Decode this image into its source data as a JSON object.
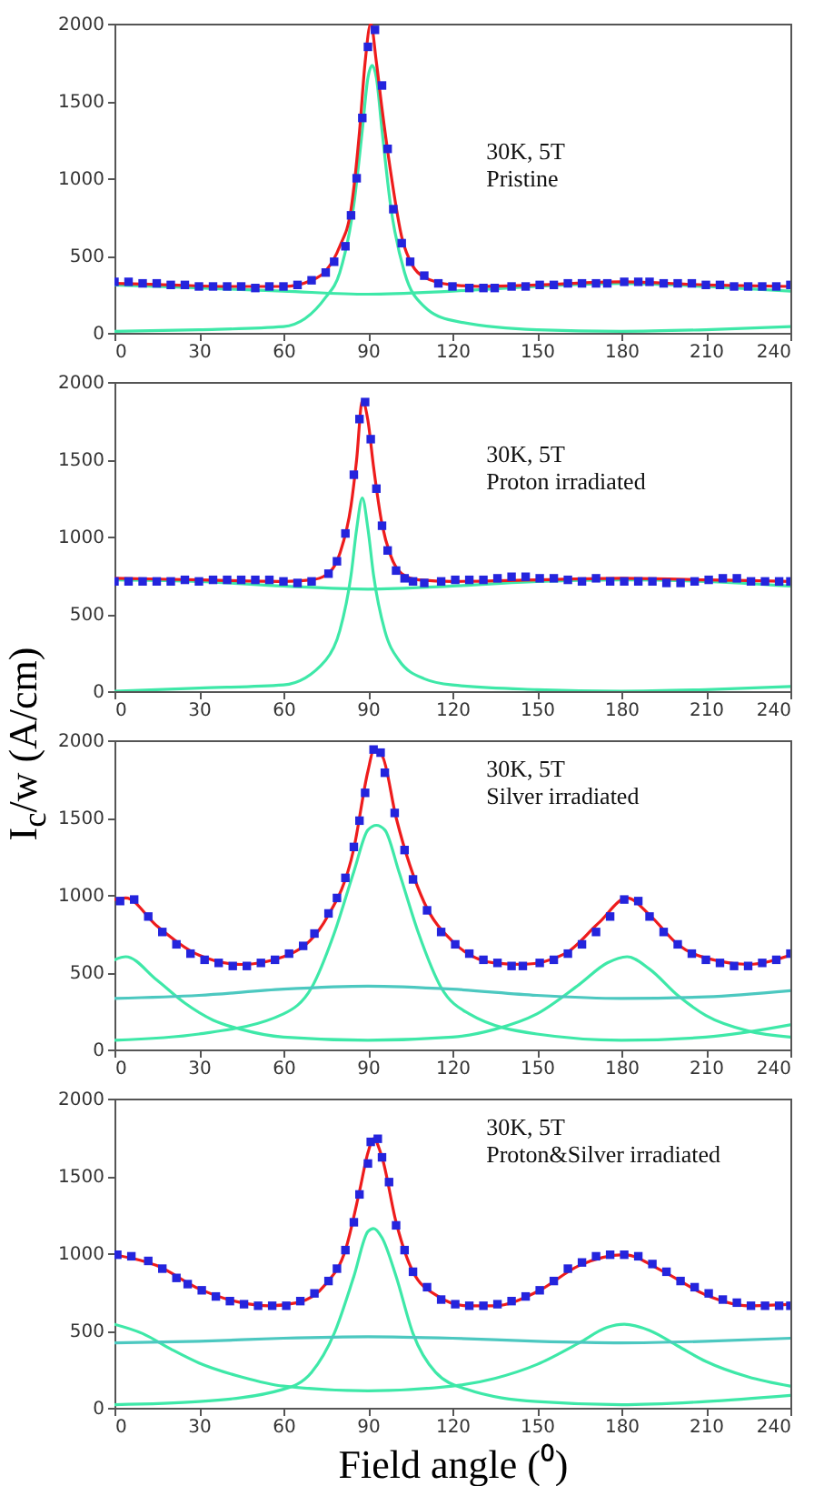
{
  "chart_data": [
    {
      "type": "line",
      "xlim": [
        0,
        240
      ],
      "ylim": [
        0,
        2000
      ],
      "xticks": [
        0,
        30,
        60,
        90,
        120,
        150,
        180,
        210,
        240
      ],
      "yticks": [
        0,
        500,
        1000,
        1500,
        2000
      ],
      "annotations": [
        "30K, 5T",
        "Pristine"
      ],
      "series": [
        {
          "type": "line",
          "color": "#3ee8a8",
          "x": [
            0,
            30,
            60,
            75,
            80,
            85,
            88,
            90,
            91.5,
            93,
            95,
            98,
            103,
            110,
            120,
            150,
            180,
            210,
            240
          ],
          "values": [
            10,
            20,
            40,
            230,
            390,
            830,
            1310,
            1650,
            1730,
            1650,
            1310,
            830,
            390,
            170,
            80,
            20,
            10,
            20,
            40
          ]
        },
        {
          "type": "line",
          "color": "#3ee8a8",
          "x": [
            0,
            30,
            60,
            90,
            120,
            150,
            180,
            210,
            240
          ],
          "values": [
            310,
            290,
            270,
            250,
            270,
            300,
            320,
            300,
            270
          ]
        },
        {
          "type": "line",
          "color": "#ee1c1c",
          "x": [
            0,
            20,
            40,
            60,
            70,
            75,
            80,
            84,
            87,
            89,
            91,
            93,
            95,
            98,
            102,
            106,
            110,
            120,
            130,
            150,
            180,
            210,
            240
          ],
          "values": [
            320,
            310,
            300,
            300,
            340,
            400,
            560,
            800,
            1300,
            1750,
            2000,
            1750,
            1450,
            1050,
            620,
            430,
            360,
            310,
            300,
            310,
            330,
            310,
            300
          ]
        },
        {
          "type": "scatter",
          "color": "#2424dd",
          "marker": "square",
          "x": [
            0,
            5,
            10,
            15,
            20,
            25,
            30,
            35,
            40,
            45,
            50,
            55,
            60,
            65,
            70,
            75,
            78,
            82,
            84,
            86,
            88,
            90,
            92.5,
            95,
            97,
            99,
            102,
            105,
            110,
            115,
            120,
            126,
            131,
            135,
            141,
            146,
            151,
            156,
            161,
            166,
            171,
            175,
            181,
            186,
            190,
            195,
            200,
            205,
            210,
            215,
            220,
            225,
            230,
            235,
            240
          ],
          "values": [
            330,
            330,
            320,
            320,
            310,
            310,
            300,
            300,
            300,
            300,
            290,
            300,
            300,
            310,
            340,
            390,
            460,
            560,
            760,
            1000,
            1390,
            1850,
            1960,
            1600,
            1190,
            800,
            580,
            460,
            370,
            320,
            300,
            290,
            290,
            290,
            300,
            300,
            310,
            310,
            320,
            320,
            320,
            320,
            330,
            330,
            330,
            320,
            320,
            320,
            310,
            310,
            300,
            300,
            300,
            300,
            310
          ]
        }
      ]
    },
    {
      "type": "line",
      "xlim": [
        0,
        240
      ],
      "ylim": [
        0,
        2000
      ],
      "xticks": [
        0,
        30,
        60,
        90,
        120,
        150,
        180,
        210,
        240
      ],
      "yticks": [
        0,
        500,
        1000,
        1500,
        2000
      ],
      "ylabel": "I$_{c}$/w (A/cm)",
      "annotations": [
        "30K, 5T",
        "Proton irradiated"
      ],
      "series": [
        {
          "type": "line",
          "color": "#3ee8a8",
          "x": [
            0,
            30,
            60,
            75,
            80,
            84,
            86,
            88,
            90,
            92,
            96,
            101,
            110,
            120,
            150,
            180,
            210,
            240
          ],
          "values": [
            0,
            20,
            40,
            200,
            390,
            750,
            1050,
            1250,
            1050,
            750,
            390,
            200,
            80,
            40,
            10,
            0,
            10,
            30
          ]
        },
        {
          "type": "line",
          "color": "#3ee8a8",
          "x": [
            0,
            30,
            60,
            90,
            120,
            150,
            180,
            210,
            240
          ],
          "values": [
            720,
            710,
            680,
            660,
            680,
            710,
            720,
            710,
            680
          ]
        },
        {
          "type": "line",
          "color": "#ee1c1c",
          "x": [
            0,
            30,
            60,
            70,
            75,
            80,
            84,
            86,
            88,
            90,
            92,
            95,
            98,
            102,
            108,
            120,
            150,
            180,
            210,
            240
          ],
          "values": [
            730,
            720,
            710,
            720,
            750,
            890,
            1200,
            1500,
            1880,
            1750,
            1450,
            1080,
            880,
            760,
            720,
            710,
            720,
            730,
            720,
            710
          ]
        },
        {
          "type": "scatter",
          "color": "#2424dd",
          "marker": "square",
          "x": [
            0,
            5,
            10,
            15,
            20,
            25,
            30,
            35,
            40,
            45,
            50,
            55,
            60,
            65,
            70,
            76,
            79,
            82,
            85,
            87,
            89,
            91,
            93,
            95,
            97,
            100,
            103,
            106,
            110,
            116,
            121,
            126,
            131,
            136,
            141,
            146,
            151,
            156,
            161,
            166,
            171,
            176,
            181,
            186,
            191,
            196,
            201,
            206,
            211,
            216,
            221,
            226,
            231,
            236,
            240
          ],
          "values": [
            710,
            710,
            710,
            710,
            710,
            720,
            710,
            720,
            720,
            720,
            720,
            720,
            710,
            700,
            710,
            760,
            840,
            1020,
            1400,
            1760,
            1870,
            1630,
            1310,
            1070,
            910,
            780,
            730,
            710,
            700,
            710,
            720,
            720,
            720,
            730,
            740,
            740,
            730,
            730,
            720,
            710,
            730,
            710,
            710,
            710,
            710,
            700,
            700,
            710,
            720,
            730,
            730,
            710,
            710,
            710,
            710
          ]
        }
      ]
    },
    {
      "type": "line",
      "xlim": [
        0,
        240
      ],
      "ylim": [
        0,
        2000
      ],
      "xticks": [
        0,
        30,
        60,
        90,
        120,
        150,
        180,
        210,
        240
      ],
      "yticks": [
        0,
        500,
        1000,
        1500,
        2000
      ],
      "annotations": [
        "30K, 5T",
        "Silver irradiated"
      ],
      "series": [
        {
          "type": "line",
          "color": "#3ee8a8",
          "x": [
            0,
            4,
            15,
            25,
            35,
            45,
            60,
            90,
            120,
            135,
            150,
            165,
            175,
            182,
            190,
            200,
            210,
            225,
            240
          ],
          "values": [
            580,
            600,
            450,
            300,
            190,
            130,
            80,
            60,
            80,
            130,
            230,
            420,
            560,
            600,
            520,
            350,
            220,
            120,
            80
          ]
        },
        {
          "type": "line",
          "color": "#3ee8a8",
          "x": [
            0,
            30,
            60,
            70,
            78,
            85,
            90,
            93,
            96,
            101,
            108,
            116,
            126,
            150,
            180,
            210,
            240
          ],
          "values": [
            60,
            100,
            230,
            400,
            750,
            1150,
            1420,
            1450,
            1420,
            1150,
            750,
            400,
            230,
            100,
            60,
            80,
            160
          ]
        },
        {
          "type": "line",
          "color": "#4cc8c0",
          "x": [
            0,
            30,
            60,
            90,
            120,
            150,
            180,
            210,
            240
          ],
          "values": [
            330,
            350,
            390,
            410,
            390,
            350,
            330,
            340,
            380
          ]
        },
        {
          "type": "line",
          "color": "#ee1c1c",
          "x": [
            0,
            4,
            15,
            30,
            45,
            60,
            75,
            85,
            90,
            92,
            95,
            100,
            110,
            120,
            135,
            145,
            160,
            172,
            182,
            190,
            200,
            215,
            225,
            240
          ],
          "values": [
            970,
            980,
            800,
            610,
            550,
            600,
            840,
            1300,
            1800,
            1930,
            1900,
            1500,
            950,
            700,
            560,
            550,
            620,
            820,
            980,
            870,
            680,
            570,
            550,
            610
          ]
        },
        {
          "type": "scatter",
          "color": "#2424dd",
          "marker": "square",
          "x": [
            2,
            7,
            12,
            17,
            22,
            27,
            32,
            37,
            42,
            47,
            52,
            57,
            62,
            67,
            71,
            76,
            79,
            82,
            85,
            87,
            89,
            92,
            94.5,
            96,
            99.5,
            103,
            106,
            111,
            116,
            121,
            126,
            131,
            136,
            141,
            145,
            151,
            156,
            161,
            166,
            171,
            176,
            181,
            186,
            190,
            195,
            200,
            205,
            210,
            215,
            220,
            225,
            230,
            235,
            240
          ],
          "values": [
            960,
            970,
            860,
            760,
            680,
            620,
            580,
            560,
            540,
            540,
            560,
            580,
            620,
            670,
            750,
            880,
            980,
            1110,
            1310,
            1480,
            1660,
            1940,
            1920,
            1790,
            1530,
            1290,
            1100,
            900,
            760,
            680,
            620,
            580,
            560,
            540,
            540,
            560,
            580,
            620,
            680,
            760,
            860,
            970,
            960,
            860,
            760,
            680,
            620,
            580,
            560,
            540,
            540,
            560,
            580,
            620
          ]
        }
      ]
    },
    {
      "type": "line",
      "xlim": [
        0,
        240
      ],
      "ylim": [
        0,
        2000
      ],
      "xticks": [
        0,
        30,
        60,
        90,
        120,
        150,
        180,
        210,
        240
      ],
      "yticks": [
        0,
        500,
        1000,
        1500,
        2000
      ],
      "xlabel": "Field angle (⁰)",
      "annotations": [
        "30K, 5T",
        "Proton&Silver irradiated"
      ],
      "series": [
        {
          "type": "line",
          "color": "#3ee8a8",
          "x": [
            0,
            10,
            20,
            30,
            45,
            60,
            90,
            120,
            135,
            150,
            165,
            175,
            181,
            190,
            200,
            210,
            225,
            240
          ],
          "values": [
            540,
            480,
            380,
            290,
            200,
            140,
            110,
            140,
            190,
            280,
            420,
            520,
            540,
            500,
            400,
            300,
            200,
            140
          ]
        },
        {
          "type": "line",
          "color": "#3ee8a8",
          "x": [
            0,
            30,
            60,
            70,
            78,
            85,
            90,
            92,
            95,
            100,
            106,
            114,
            125,
            150,
            180,
            210,
            240
          ],
          "values": [
            20,
            40,
            120,
            230,
            480,
            850,
            1140,
            1160,
            1100,
            850,
            480,
            230,
            120,
            40,
            20,
            40,
            80
          ]
        },
        {
          "type": "line",
          "color": "#4cc8c0",
          "x": [
            0,
            30,
            60,
            90,
            120,
            150,
            180,
            210,
            240
          ],
          "values": [
            420,
            430,
            450,
            460,
            450,
            430,
            420,
            430,
            450
          ]
        },
        {
          "type": "line",
          "color": "#ee1c1c",
          "x": [
            0,
            15,
            30,
            45,
            55,
            65,
            75,
            82,
            87,
            90,
            92,
            95,
            100,
            106,
            115,
            125,
            135,
            150,
            165,
            181,
            195,
            210,
            225,
            240
          ],
          "values": [
            990,
            920,
            770,
            680,
            660,
            680,
            800,
            1020,
            1400,
            1650,
            1740,
            1620,
            1200,
            880,
            720,
            660,
            660,
            750,
            920,
            990,
            880,
            730,
            660,
            670
          ]
        },
        {
          "type": "scatter",
          "color": "#2424dd",
          "marker": "square",
          "x": [
            1,
            6,
            12,
            17,
            22,
            26,
            31,
            36,
            41,
            46,
            51,
            56,
            61,
            66,
            71,
            76,
            79,
            82,
            85,
            87,
            90,
            91,
            93.5,
            95,
            97.5,
            100,
            103,
            106,
            111,
            116,
            121,
            126,
            131,
            136,
            141,
            146,
            151,
            156,
            161,
            166,
            171,
            176,
            181,
            186,
            191,
            196,
            201,
            206,
            211,
            216,
            221,
            226,
            231,
            236,
            240
          ],
          "values": [
            990,
            980,
            950,
            900,
            840,
            800,
            760,
            720,
            690,
            670,
            660,
            660,
            660,
            690,
            740,
            820,
            900,
            1020,
            1200,
            1380,
            1580,
            1720,
            1740,
            1620,
            1460,
            1180,
            1020,
            880,
            780,
            700,
            670,
            660,
            660,
            670,
            690,
            720,
            760,
            820,
            900,
            940,
            980,
            990,
            990,
            980,
            930,
            880,
            820,
            780,
            740,
            700,
            680,
            660,
            660,
            660,
            660
          ]
        }
      ]
    }
  ]
}
